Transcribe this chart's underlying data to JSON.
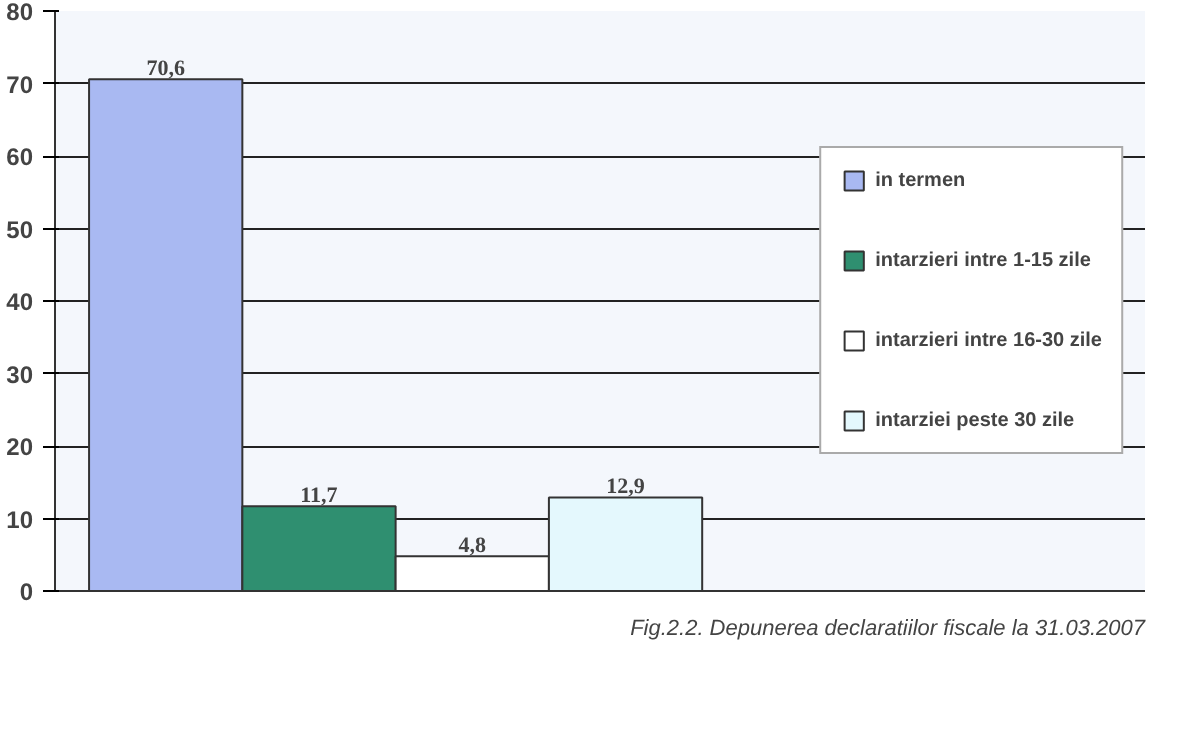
{
  "chart_data": {
    "type": "bar",
    "categories": [
      null
    ],
    "series": [
      {
        "name": "in termen",
        "color": "#a9b9f2",
        "values": [
          70.6
        ],
        "value_labels": [
          "70,6"
        ]
      },
      {
        "name": "intarzieri intre 1-15 zile",
        "color": "#2f8f70",
        "values": [
          11.7
        ],
        "value_labels": [
          "11,7"
        ]
      },
      {
        "name": "intarzieri intre 16-30 zile",
        "color": "#ffffff",
        "values": [
          4.8
        ],
        "value_labels": [
          "4,8"
        ]
      },
      {
        "name": "intarziei peste 30 zile",
        "color": "#e4f8fd",
        "values": [
          12.9
        ],
        "value_labels": [
          "12,9"
        ]
      }
    ],
    "ylim": [
      0,
      80
    ],
    "yticks": [
      0,
      10,
      20,
      30,
      40,
      50,
      60,
      70,
      80
    ],
    "grid": "y",
    "legend": "right",
    "annotations": [
      "Fig.2.2. Depunerea declaratiilor fiscale la 31.03.2007"
    ]
  }
}
